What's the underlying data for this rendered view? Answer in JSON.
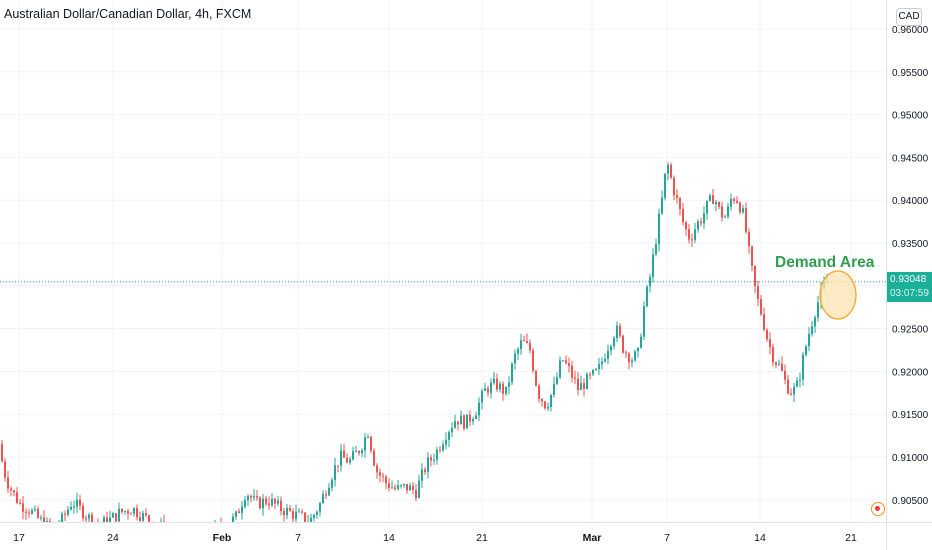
{
  "header": {
    "symbol_title": "Australian Dollar/Canadian Dollar, 4h, FXCM",
    "currency": "CAD"
  },
  "price_tag": {
    "price": "0.93048",
    "countdown": "03:07:59"
  },
  "annotation": {
    "label": "Demand Area",
    "color": "#2e9e4e",
    "zone_fill": "#fde3b0",
    "zone_stroke": "#f5a623"
  },
  "colors": {
    "up": "#26a69a",
    "down": "#ef5350",
    "grid": "#f0f3fa",
    "axis_text": "#131722",
    "current_price_line": "#1ab097"
  },
  "chart_data": {
    "type": "candlestick",
    "title": "Australian Dollar/Canadian Dollar, 4h, FXCM",
    "y_axis": {
      "ticks": [
        "0.96000",
        "0.95500",
        "0.95000",
        "0.94500",
        "0.94000",
        "0.93500",
        "0.93000",
        "0.92500",
        "0.92000",
        "0.91500",
        "0.91000",
        "0.90500"
      ],
      "range": [
        0.9017,
        0.9625
      ],
      "position": "right"
    },
    "x_axis": {
      "tick_labels": [
        "17",
        "24",
        "Feb",
        "7",
        "14",
        "21",
        "Mar",
        "7",
        "14",
        "21"
      ],
      "bold_labels": [
        "Feb",
        "Mar"
      ]
    },
    "current_price": 0.93048,
    "price_path": [
      [
        0,
        0.9115
      ],
      [
        3,
        0.91
      ],
      [
        8,
        0.9075
      ],
      [
        14,
        0.906
      ],
      [
        22,
        0.9045
      ],
      [
        30,
        0.904
      ],
      [
        40,
        0.9028
      ],
      [
        50,
        0.9018
      ],
      [
        62,
        0.9022
      ],
      [
        74,
        0.9048
      ],
      [
        86,
        0.9035
      ],
      [
        98,
        0.902
      ],
      [
        110,
        0.9025
      ],
      [
        122,
        0.9035
      ],
      [
        134,
        0.904
      ],
      [
        146,
        0.903
      ],
      [
        160,
        0.902
      ],
      [
        175,
        0.901
      ],
      [
        190,
        0.9005
      ],
      [
        205,
        0.901
      ],
      [
        218,
        0.9015
      ],
      [
        228,
        0.9018
      ],
      [
        238,
        0.903
      ],
      [
        248,
        0.906
      ],
      [
        258,
        0.9045
      ],
      [
        270,
        0.905
      ],
      [
        282,
        0.904
      ],
      [
        292,
        0.9035
      ],
      [
        302,
        0.903
      ],
      [
        312,
        0.9025
      ],
      [
        322,
        0.9045
      ],
      [
        332,
        0.9075
      ],
      [
        342,
        0.91
      ],
      [
        352,
        0.9095
      ],
      [
        362,
        0.911
      ],
      [
        370,
        0.913
      ],
      [
        378,
        0.9085
      ],
      [
        388,
        0.907
      ],
      [
        398,
        0.9062
      ],
      [
        408,
        0.9065
      ],
      [
        418,
        0.906
      ],
      [
        428,
        0.909
      ],
      [
        438,
        0.9105
      ],
      [
        448,
        0.9128
      ],
      [
        458,
        0.9145
      ],
      [
        468,
        0.914
      ],
      [
        478,
        0.9155
      ],
      [
        488,
        0.918
      ],
      [
        498,
        0.9185
      ],
      [
        508,
        0.9175
      ],
      [
        516,
        0.9215
      ],
      [
        524,
        0.9235
      ],
      [
        532,
        0.9225
      ],
      [
        540,
        0.9175
      ],
      [
        548,
        0.916
      ],
      [
        556,
        0.918
      ],
      [
        564,
        0.9215
      ],
      [
        572,
        0.92
      ],
      [
        580,
        0.918
      ],
      [
        590,
        0.919
      ],
      [
        600,
        0.92
      ],
      [
        610,
        0.923
      ],
      [
        618,
        0.925
      ],
      [
        626,
        0.9225
      ],
      [
        634,
        0.9215
      ],
      [
        640,
        0.922
      ],
      [
        646,
        0.9275
      ],
      [
        652,
        0.931
      ],
      [
        658,
        0.9355
      ],
      [
        664,
        0.94
      ],
      [
        669,
        0.9445
      ],
      [
        674,
        0.942
      ],
      [
        680,
        0.9395
      ],
      [
        686,
        0.937
      ],
      [
        692,
        0.9355
      ],
      [
        698,
        0.937
      ],
      [
        704,
        0.938
      ],
      [
        710,
        0.9395
      ],
      [
        716,
        0.9405
      ],
      [
        722,
        0.9385
      ],
      [
        728,
        0.938
      ],
      [
        734,
        0.9405
      ],
      [
        740,
        0.94
      ],
      [
        746,
        0.938
      ],
      [
        752,
        0.933
      ],
      [
        758,
        0.929
      ],
      [
        764,
        0.9265
      ],
      [
        770,
        0.9235
      ],
      [
        776,
        0.9215
      ],
      [
        782,
        0.9205
      ],
      [
        788,
        0.9185
      ],
      [
        794,
        0.9175
      ],
      [
        800,
        0.9185
      ],
      [
        806,
        0.922
      ],
      [
        812,
        0.925
      ],
      [
        818,
        0.9275
      ],
      [
        823,
        0.929
      ],
      [
        828,
        0.9305
      ]
    ]
  }
}
